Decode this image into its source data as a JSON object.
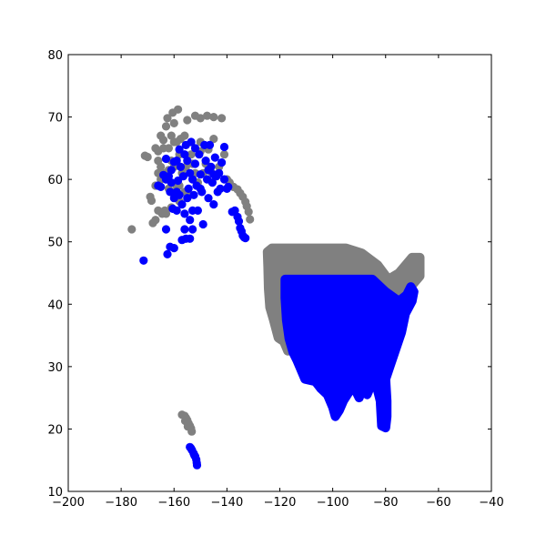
{
  "chart_data": {
    "type": "scatter",
    "title": "",
    "xlabel": "",
    "ylabel": "",
    "xlim": [
      -200,
      -40
    ],
    "ylim": [
      10,
      80
    ],
    "xticks": [
      -200,
      -180,
      -160,
      -140,
      -120,
      -100,
      -80,
      -60,
      -40
    ],
    "yticks": [
      10,
      20,
      30,
      40,
      50,
      60,
      70,
      80
    ],
    "xtick_labels": [
      "−200",
      "−180",
      "−160",
      "−140",
      "−120",
      "−100",
      "−80",
      "−60",
      "−40"
    ],
    "ytick_labels": [
      "10",
      "20",
      "30",
      "40",
      "50",
      "60",
      "70",
      "80"
    ],
    "grid": false,
    "legend": "none",
    "series": [
      {
        "color": "#808080",
        "points": [
          [
            -176,
            52
          ],
          [
            -171,
            63.8
          ],
          [
            -170,
            63.6
          ],
          [
            -169,
            57.2
          ],
          [
            -168.5,
            56.6
          ],
          [
            -168,
            53
          ],
          [
            -167,
            53.5
          ],
          [
            -166,
            64.5
          ],
          [
            -165,
            62
          ],
          [
            -164,
            61
          ],
          [
            -164,
            65
          ],
          [
            -164,
            66.3
          ],
          [
            -163,
            60
          ],
          [
            -163,
            54.5
          ],
          [
            -162.5,
            69.8
          ],
          [
            -162,
            58.5
          ],
          [
            -161,
            55.5
          ],
          [
            -161,
            63
          ],
          [
            -160.5,
            70.7
          ],
          [
            -160,
            66
          ],
          [
            -159,
            59
          ],
          [
            -158.5,
            71.2
          ],
          [
            -158,
            56.5
          ],
          [
            -157.5,
            66.5
          ],
          [
            -157,
            61
          ],
          [
            -156,
            67
          ],
          [
            -156,
            58
          ],
          [
            -155.5,
            62
          ],
          [
            -155,
            69.5
          ],
          [
            -154,
            57.5
          ],
          [
            -153.5,
            64
          ],
          [
            -153,
            62.5
          ],
          [
            -152,
            61
          ],
          [
            -152,
            70.2
          ],
          [
            -151,
            59.5
          ],
          [
            -150,
            66
          ],
          [
            -150,
            64.5
          ],
          [
            -150,
            69.8
          ],
          [
            -149,
            61
          ],
          [
            -148,
            62.5
          ],
          [
            -147.5,
            70.2
          ],
          [
            -147,
            64.8
          ],
          [
            -146,
            61.2
          ],
          [
            -145,
            66.5
          ],
          [
            -145,
            70
          ],
          [
            -144,
            60.5
          ],
          [
            -143,
            62
          ],
          [
            -142,
            69.8
          ],
          [
            -141,
            64
          ],
          [
            -140,
            60
          ],
          [
            -139,
            59.5
          ],
          [
            -137.5,
            58.8
          ],
          [
            -136,
            58.4
          ],
          [
            -135,
            57.8
          ],
          [
            -134,
            57.2
          ],
          [
            -133,
            56.4
          ],
          [
            -132.5,
            55.7
          ],
          [
            -131.8,
            54.8
          ],
          [
            -131.3,
            53.6
          ],
          [
            -160,
            58
          ],
          [
            -158,
            59
          ],
          [
            -162,
            65
          ],
          [
            -165,
            60
          ],
          [
            -166,
            61
          ],
          [
            -167,
            65
          ],
          [
            -160,
            62
          ],
          [
            -158,
            64
          ],
          [
            -161,
            67
          ],
          [
            -159,
            66
          ],
          [
            -165,
            67
          ],
          [
            -163,
            68.5
          ],
          [
            -160,
            69
          ],
          [
            -166,
            63
          ],
          [
            -167,
            59
          ],
          [
            -162,
            61.5
          ],
          [
            -166,
            55
          ],
          [
            -164.5,
            54.5
          ],
          [
            -163.5,
            55
          ],
          [
            -156,
            22.1
          ],
          [
            -155.5,
            21.8
          ],
          [
            -155,
            21.4
          ],
          [
            -154.5,
            20.9
          ],
          [
            -154,
            20.5
          ],
          [
            -153.6,
            20.1
          ],
          [
            -153.3,
            19.6
          ],
          [
            -157,
            22.3
          ],
          [
            -155.8,
            21.3
          ],
          [
            -154.8,
            20.4
          ]
        ],
        "regions": [
          {
            "polygon": [
              [
                -117,
                49
              ],
              [
                -95,
                49
              ],
              [
                -89,
                48.2
              ],
              [
                -83,
                46.3
              ],
              [
                -79,
                44
              ],
              [
                -75,
                45
              ],
              [
                -70,
                47.5
              ],
              [
                -67,
                47.5
              ],
              [
                -67,
                44.5
              ],
              [
                -70,
                43
              ],
              [
                -71,
                41.5
              ],
              [
                -74,
                40.5
              ],
              [
                -76,
                38
              ],
              [
                -76,
                35.5
              ],
              [
                -78,
                34
              ],
              [
                -81,
                32
              ],
              [
                -81,
                30
              ],
              [
                -80.5,
                28
              ],
              [
                -80,
                25.5
              ],
              [
                -82,
                25
              ],
              [
                -83,
                29
              ],
              [
                -85,
                29.5
              ],
              [
                -88,
                30.2
              ],
              [
                -90,
                29
              ],
              [
                -94,
                29.5
              ],
              [
                -97,
                27.8
              ],
              [
                -97.5,
                25.9
              ],
              [
                -99.5,
                26.5
              ],
              [
                -101,
                29.5
              ],
              [
                -104,
                29.3
              ],
              [
                -106.5,
                31.7
              ],
              [
                -111,
                31.3
              ],
              [
                -114.7,
                32.7
              ],
              [
                -117,
                32.5
              ],
              [
                -118.5,
                34
              ],
              [
                -120.6,
                34.6
              ],
              [
                -122.4,
                37.5
              ],
              [
                -123.8,
                39.5
              ],
              [
                -124.3,
                42.5
              ],
              [
                -124.5,
                46
              ],
              [
                -124.7,
                48.4
              ],
              [
                -123,
                49
              ]
            ]
          }
        ]
      },
      {
        "color": "#0000ff",
        "points": [
          [
            -171.5,
            47
          ],
          [
            -163,
            52
          ],
          [
            -162.5,
            48
          ],
          [
            -161.5,
            49.2
          ],
          [
            -160,
            49
          ],
          [
            -160.5,
            55.3
          ],
          [
            -159,
            55
          ],
          [
            -157,
            50.3
          ],
          [
            -155.5,
            50.5
          ],
          [
            -154,
            50.5
          ],
          [
            -153,
            52
          ],
          [
            -166,
            59
          ],
          [
            -165,
            58.8
          ],
          [
            -164,
            60.7
          ],
          [
            -163,
            63.3
          ],
          [
            -163,
            60
          ],
          [
            -162,
            60.5
          ],
          [
            -161.5,
            58
          ],
          [
            -161,
            61.5
          ],
          [
            -160,
            62.8
          ],
          [
            -160,
            57
          ],
          [
            -159,
            58
          ],
          [
            -158.5,
            59.8
          ],
          [
            -158,
            64.8
          ],
          [
            -157.5,
            62
          ],
          [
            -157,
            56
          ],
          [
            -156.5,
            60.5
          ],
          [
            -156,
            54.5
          ],
          [
            -155.5,
            65.5
          ],
          [
            -155,
            63
          ],
          [
            -154.5,
            58.5
          ],
          [
            -154,
            61
          ],
          [
            -153.5,
            66
          ],
          [
            -153,
            60
          ],
          [
            -152.5,
            57.5
          ],
          [
            -152,
            62.5
          ],
          [
            -151.5,
            59
          ],
          [
            -151,
            55
          ],
          [
            -150.5,
            64
          ],
          [
            -150,
            60.8
          ],
          [
            -149.5,
            58
          ],
          [
            -149,
            52.8
          ],
          [
            -148.5,
            65.5
          ],
          [
            -148,
            63
          ],
          [
            -147.5,
            60
          ],
          [
            -147,
            57
          ],
          [
            -146.5,
            65.5
          ],
          [
            -146,
            62
          ],
          [
            -145.5,
            59.5
          ],
          [
            -145,
            56
          ],
          [
            -144.5,
            63.5
          ],
          [
            -144,
            60.5
          ],
          [
            -143.5,
            58
          ],
          [
            -143,
            61
          ],
          [
            -142.5,
            58.5
          ],
          [
            -142,
            62.7
          ],
          [
            -141,
            65.2
          ],
          [
            -141,
            60
          ],
          [
            -140,
            58.5
          ],
          [
            -139.5,
            58.8
          ],
          [
            -138,
            54.8
          ],
          [
            -137,
            55
          ],
          [
            -136,
            54
          ],
          [
            -135.5,
            53.3
          ],
          [
            -135,
            52.2
          ],
          [
            -134.5,
            51.7
          ],
          [
            -134,
            51
          ],
          [
            -133.5,
            50.7
          ],
          [
            -133,
            50.6
          ],
          [
            -156,
            64
          ],
          [
            -152,
            65
          ],
          [
            -159,
            63
          ],
          [
            -161,
            59.5
          ],
          [
            -158,
            57.5
          ],
          [
            -155,
            57
          ],
          [
            -150,
            58.5
          ],
          [
            -147,
            61.5
          ],
          [
            -145,
            60.8
          ],
          [
            -153,
            55
          ],
          [
            -156,
            52
          ],
          [
            -154,
            53.5
          ],
          [
            -154,
            17.1
          ],
          [
            -153.2,
            16.6
          ],
          [
            -152.6,
            16.1
          ],
          [
            -152,
            15.6
          ],
          [
            -151.6,
            15.1
          ],
          [
            -151.4,
            14.6
          ],
          [
            -151.3,
            14.2
          ],
          [
            -153.6,
            16.9
          ],
          [
            -152.3,
            15.8
          ]
        ],
        "regions": [
          {
            "polygon": [
              [
                -118,
                44
              ],
              [
                -85,
                44
              ],
              [
                -80,
                42
              ],
              [
                -75,
                40.5
              ],
              [
                -72,
                41.5
              ],
              [
                -70.5,
                42.8
              ],
              [
                -69.3,
                42
              ],
              [
                -70,
                40.5
              ],
              [
                -72.5,
                38.5
              ],
              [
                -74,
                35.5
              ],
              [
                -76,
                33
              ],
              [
                -78,
                30.5
              ],
              [
                -80,
                28
              ],
              [
                -79.5,
                24.5
              ],
              [
                -79.5,
                22
              ],
              [
                -80,
                20.2
              ],
              [
                -81.5,
                20.5
              ],
              [
                -82,
                24.5
              ],
              [
                -83.5,
                27
              ],
              [
                -85,
                27.5
              ],
              [
                -87,
                25.5
              ],
              [
                -88.5,
                27
              ],
              [
                -90,
                25
              ],
              [
                -91.5,
                26.3
              ],
              [
                -93,
                26.5
              ],
              [
                -96,
                24.5
              ],
              [
                -97.5,
                23
              ],
              [
                -99,
                22
              ],
              [
                -100,
                23.5
              ],
              [
                -102,
                25.5
              ],
              [
                -104.5,
                26.5
              ],
              [
                -106.5,
                27.6
              ],
              [
                -110.5,
                28
              ],
              [
                -113.5,
                31
              ],
              [
                -115,
                32.3
              ],
              [
                -116.5,
                34.5
              ],
              [
                -117.5,
                37.5
              ],
              [
                -118,
                41
              ]
            ]
          }
        ]
      }
    ]
  }
}
